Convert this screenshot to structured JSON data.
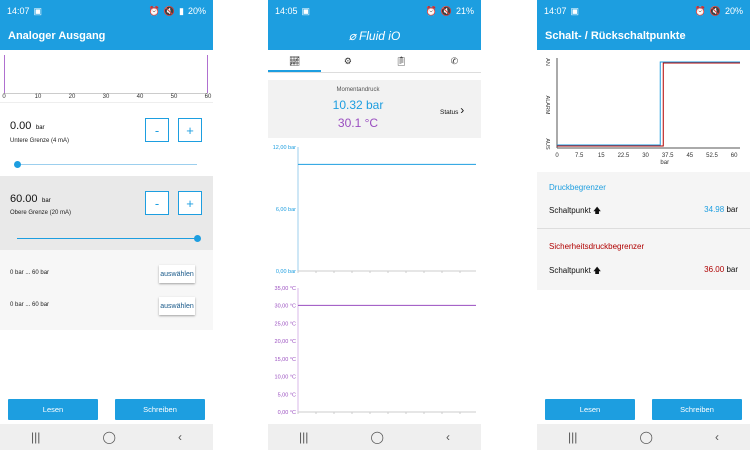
{
  "phone1": {
    "status": {
      "time": "14:07",
      "battery": "20%"
    },
    "title": "Analoger Ausgang",
    "axis_ticks": [
      "0",
      "10",
      "20",
      "30",
      "40",
      "50",
      "60"
    ],
    "lower": {
      "value": "0.00",
      "unit": "bar",
      "label": "Untere Grenze (4 mA)",
      "slider_fraction": 0.0
    },
    "upper": {
      "value": "60.00",
      "unit": "bar",
      "label": "Obere Grenze (20 mA)",
      "slider_fraction": 1.0
    },
    "minus": "-",
    "plus": "+",
    "ranges": [
      {
        "text": "0  bar ... 60  bar",
        "button": "auswählen"
      },
      {
        "text": "0  bar ... 60  bar",
        "button": "auswählen"
      }
    ],
    "read_button": "Lesen",
    "write_button": "Schreiben"
  },
  "phone2": {
    "status": {
      "time": "14:05",
      "battery": "21%"
    },
    "logo": "Fluid iO",
    "tabs": [
      "chart-icon",
      "gear-icon",
      "clipboard-icon",
      "phone-icon"
    ],
    "current_label": "Momentandruck",
    "pressure": "10.32 bar",
    "temperature": "30.1 °C",
    "status_label": "Status",
    "pressure_ticks": [
      "12,00 bar",
      "6,00 bar",
      "0,00 bar"
    ],
    "pressure_value": 10.32,
    "temp_ticks": [
      "35,00 °C",
      "30,00 °C",
      "25,00 °C",
      "20,00 °C",
      "15,00 °C",
      "10,00 °C",
      "5,00 °C",
      "0,00 °C"
    ],
    "temp_value": 30.1
  },
  "phone3": {
    "status": {
      "time": "14:07",
      "battery": "20%"
    },
    "title": "Schalt- / Rückschaltpunkte",
    "y_labels": [
      "AN",
      "ALARM",
      "AUS"
    ],
    "x_ticks": [
      "0",
      "7.5",
      "15",
      "22.5",
      "30",
      "37.5",
      "45",
      "52.5",
      "60"
    ],
    "x_unit": "bar",
    "limiter": {
      "heading": "Druckbegrenzer",
      "label": "Schaltpunkt",
      "value": "34.98",
      "unit": "bar",
      "color": "#1d9ee0"
    },
    "safety": {
      "heading": "Sicherheitsdruckbegrenzer",
      "label": "Schaltpunkt",
      "value": "36.00",
      "unit": "bar",
      "color": "#b00000"
    },
    "read_button": "Lesen",
    "write_button": "Schreiben"
  }
}
